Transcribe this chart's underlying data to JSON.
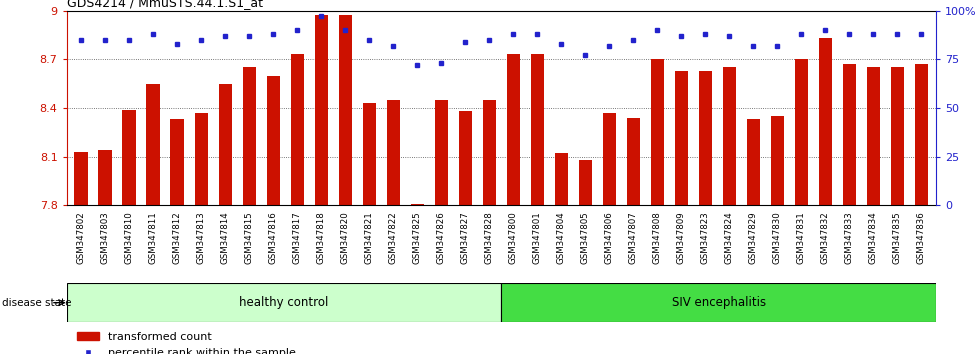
{
  "title": "GDS4214 / MmuSTS.44.1.S1_at",
  "samples": [
    "GSM347802",
    "GSM347803",
    "GSM347810",
    "GSM347811",
    "GSM347812",
    "GSM347813",
    "GSM347814",
    "GSM347815",
    "GSM347816",
    "GSM347817",
    "GSM347818",
    "GSM347820",
    "GSM347821",
    "GSM347822",
    "GSM347825",
    "GSM347826",
    "GSM347827",
    "GSM347828",
    "GSM347800",
    "GSM347801",
    "GSM347804",
    "GSM347805",
    "GSM347806",
    "GSM347807",
    "GSM347808",
    "GSM347809",
    "GSM347823",
    "GSM347824",
    "GSM347829",
    "GSM347830",
    "GSM347831",
    "GSM347832",
    "GSM347833",
    "GSM347834",
    "GSM347835",
    "GSM347836"
  ],
  "bar_values": [
    8.13,
    8.14,
    8.39,
    8.55,
    8.33,
    8.37,
    8.55,
    8.65,
    8.6,
    8.73,
    8.97,
    8.97,
    8.43,
    8.45,
    7.81,
    8.45,
    8.38,
    8.45,
    8.73,
    8.73,
    8.12,
    8.08,
    8.37,
    8.34,
    8.7,
    8.63,
    8.63,
    8.65,
    8.33,
    8.35,
    8.7,
    8.83,
    8.67,
    8.65,
    8.65,
    8.67
  ],
  "percentile_values": [
    85,
    85,
    85,
    88,
    83,
    85,
    87,
    87,
    88,
    90,
    97,
    90,
    85,
    82,
    72,
    73,
    84,
    85,
    88,
    88,
    83,
    77,
    82,
    85,
    90,
    87,
    88,
    87,
    82,
    82,
    88,
    90,
    88,
    88,
    88,
    88
  ],
  "group_labels": [
    "healthy control",
    "SIV encephalitis"
  ],
  "group_split": 18,
  "group_color_left": "#ccffcc",
  "group_color_right": "#44dd44",
  "bar_color": "#cc1100",
  "percentile_color": "#2222cc",
  "ylim": [
    7.8,
    9.0
  ],
  "ytick_values": [
    7.8,
    8.1,
    8.4,
    8.7,
    9.0
  ],
  "ytick_labels": [
    "7.8",
    "8.1",
    "8.4",
    "8.7",
    "9"
  ],
  "right_ytick_values": [
    0,
    25,
    50,
    75,
    100
  ],
  "right_ytick_labels": [
    "0",
    "25",
    "50",
    "75",
    "100%"
  ],
  "grid_lines": [
    8.1,
    8.4,
    8.7
  ],
  "legend_bar_label": "transformed count",
  "legend_pct_label": "percentile rank within the sample",
  "disease_state_label": "disease state"
}
